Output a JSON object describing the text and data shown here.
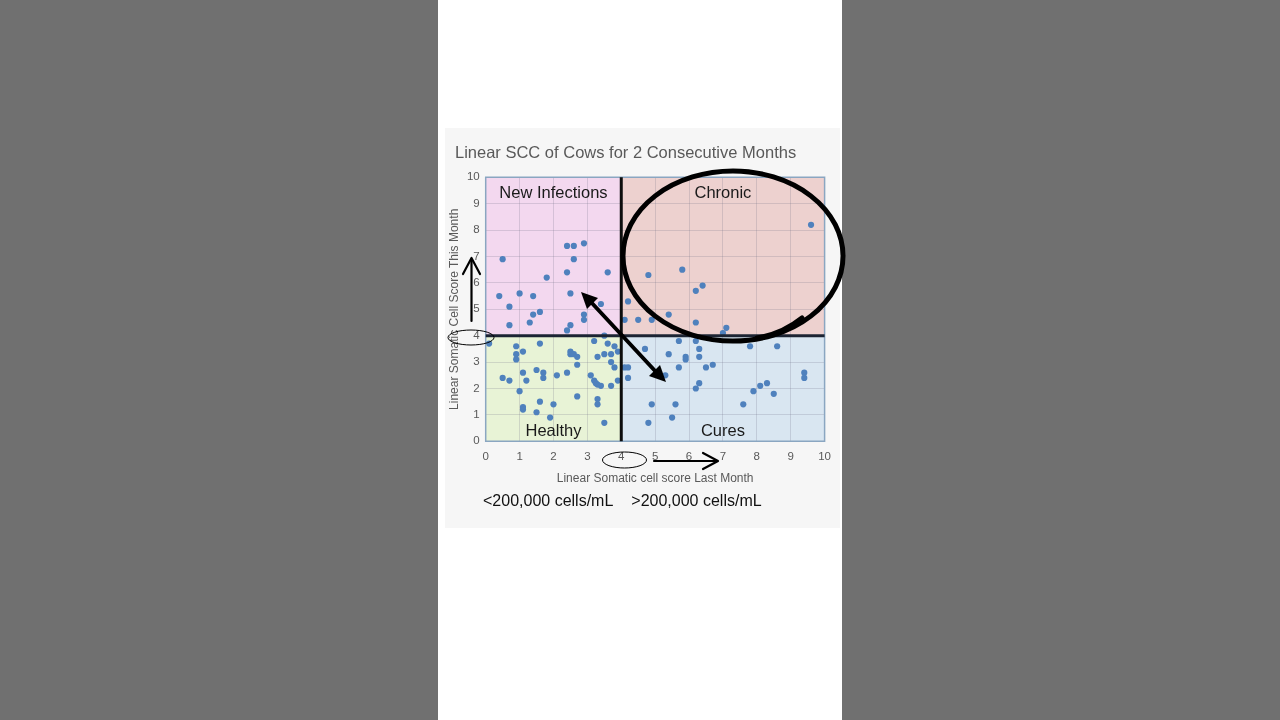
{
  "chart_data": {
    "type": "scatter",
    "title": "Linear SCC of Cows for 2 Consecutive Months",
    "xlabel": "Linear Somatic cell score Last Month",
    "ylabel": "Linear Somatic Cell Score This Month",
    "series": [
      {
        "name": "New Infections",
        "type": "area",
        "x": [
          0,
          4
        ],
        "values": [
          10,
          10
        ],
        "color": "#f3d8ef"
      },
      {
        "name": "Chronic",
        "type": "area",
        "x": [
          4,
          10
        ],
        "values": [
          10,
          10
        ],
        "color": "#edd1cf"
      },
      {
        "name": "Healthy",
        "type": "area",
        "x": [
          0,
          4
        ],
        "values": [
          4,
          4
        ],
        "color": "#e8f3d6"
      },
      {
        "name": "Cures",
        "type": "area",
        "x": [
          4,
          10
        ],
        "values": [
          4,
          4
        ],
        "color": "#d9e6f1"
      },
      {
        "color": "#4f81bd",
        "marker": "circle",
        "x": [
          0.5,
          0.4,
          0.7,
          0.7,
          1.0,
          1.4,
          1.4,
          1.3,
          1.6,
          1.8,
          2.4,
          2.6,
          2.9,
          2.6,
          2.4,
          2.5,
          2.9,
          2.9,
          2.5,
          2.4,
          3.6,
          3.4,
          3.5,
          9.6,
          4.8,
          5.8,
          6.2,
          6.4,
          4.2,
          4.1,
          4.5,
          4.9,
          5.4,
          6.2,
          7.1,
          7.0,
          0.1,
          0.9,
          0.9,
          0.9,
          1.1,
          1.6,
          2.5,
          2.5,
          2.6,
          2.7,
          2.7,
          3.3,
          3.5,
          3.7,
          3.8,
          3.6,
          3.2,
          3.9,
          3.7,
          3.8,
          3.9,
          3.7,
          3.4,
          3.3,
          3.25,
          3.2,
          3.1,
          2.4,
          2.1,
          1.7,
          1.7,
          1.5,
          1.1,
          1.2,
          0.5,
          0.7,
          1.0,
          2.7,
          1.6,
          2.0,
          1.1,
          1.1,
          1.5,
          1.9,
          3.3,
          3.3,
          3.5,
          5.7,
          6.2,
          4.7,
          5.4,
          5.9,
          5.9,
          6.3,
          6.3,
          7.8,
          8.6,
          4.1,
          4.2,
          4.2,
          5.7,
          6.5,
          6.7,
          5.3,
          6.3,
          6.2,
          9.4,
          9.4,
          8.3,
          8.1,
          7.9,
          8.5,
          7.6,
          4.9,
          5.6,
          5.5,
          4.8
        ],
        "values": [
          6.9,
          5.5,
          5.1,
          4.4,
          5.6,
          5.5,
          4.8,
          4.5,
          4.9,
          6.2,
          7.4,
          7.4,
          7.5,
          6.9,
          6.4,
          5.6,
          4.8,
          4.6,
          4.4,
          4.2,
          6.4,
          5.2,
          4.0,
          8.2,
          6.3,
          6.5,
          5.7,
          5.9,
          5.3,
          4.6,
          4.6,
          4.6,
          4.8,
          4.5,
          4.3,
          4.1,
          3.7,
          3.6,
          3.3,
          3.1,
          3.4,
          3.7,
          3.4,
          3.3,
          3.3,
          3.2,
          2.9,
          3.2,
          3.3,
          3.3,
          3.6,
          3.7,
          3.8,
          3.4,
          3.0,
          2.8,
          2.3,
          2.1,
          2.1,
          2.15,
          2.2,
          2.3,
          2.5,
          2.6,
          2.5,
          2.6,
          2.4,
          2.7,
          2.6,
          2.3,
          2.4,
          2.3,
          1.9,
          1.7,
          1.5,
          1.4,
          1.3,
          1.2,
          1.1,
          0.9,
          1.6,
          1.4,
          0.7,
          3.8,
          3.8,
          3.5,
          3.3,
          3.2,
          3.1,
          3.5,
          3.2,
          3.6,
          3.6,
          2.8,
          2.8,
          2.4,
          2.8,
          2.8,
          2.9,
          2.5,
          2.2,
          2.0,
          2.6,
          2.4,
          2.2,
          2.1,
          1.9,
          1.8,
          1.4,
          1.4,
          1.4,
          0.9,
          0.7
        ]
      }
    ],
    "grid": true,
    "xlim": [
      0,
      10
    ],
    "ylim": [
      0,
      10
    ],
    "xticks": [
      0,
      1,
      2,
      3,
      4,
      5,
      6,
      7,
      8,
      9,
      10
    ],
    "yticks": [
      0,
      1,
      2,
      3,
      4,
      5,
      6,
      7,
      8,
      9,
      10
    ],
    "ref_lines": [
      {
        "axis": "y",
        "value": 4,
        "color": "#1c2433"
      },
      {
        "axis": "x",
        "value": 4,
        "color": "#0d0d0d"
      }
    ],
    "annotations": [
      "<200,000 cells/mL",
      ">200,000 cells/mL"
    ]
  }
}
